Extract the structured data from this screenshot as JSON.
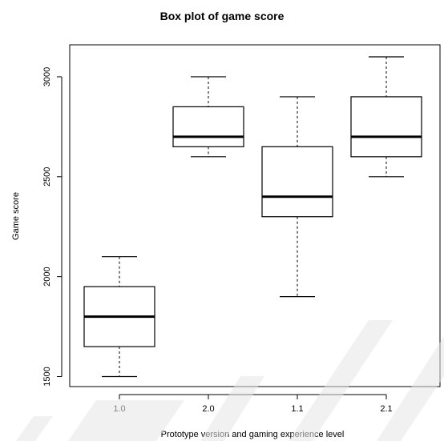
{
  "chart_data": {
    "type": "box",
    "title": "Box plot of game score",
    "xlabel": "Prototype version and gaming experience level",
    "ylabel": "Game score",
    "categories": [
      "1.0",
      "2.0",
      "1.1",
      "2.1"
    ],
    "boxes": [
      {
        "category": "1.0",
        "min": 1500,
        "q1": 1650,
        "median": 1800,
        "q3": 1950,
        "max": 2100
      },
      {
        "category": "2.0",
        "min": 2600,
        "q1": 2650,
        "median": 2700,
        "q3": 2850,
        "max": 3000
      },
      {
        "category": "1.1",
        "min": 1900,
        "q1": 2300,
        "median": 2400,
        "q3": 2650,
        "max": 2900
      },
      {
        "category": "2.1",
        "min": 2500,
        "q1": 2600,
        "median": 2700,
        "q3": 2900,
        "max": 3100
      }
    ],
    "yticks": [
      1500,
      2000,
      2500,
      3000
    ],
    "ylim": [
      1450,
      3160
    ],
    "grid": false,
    "legend": "none"
  }
}
